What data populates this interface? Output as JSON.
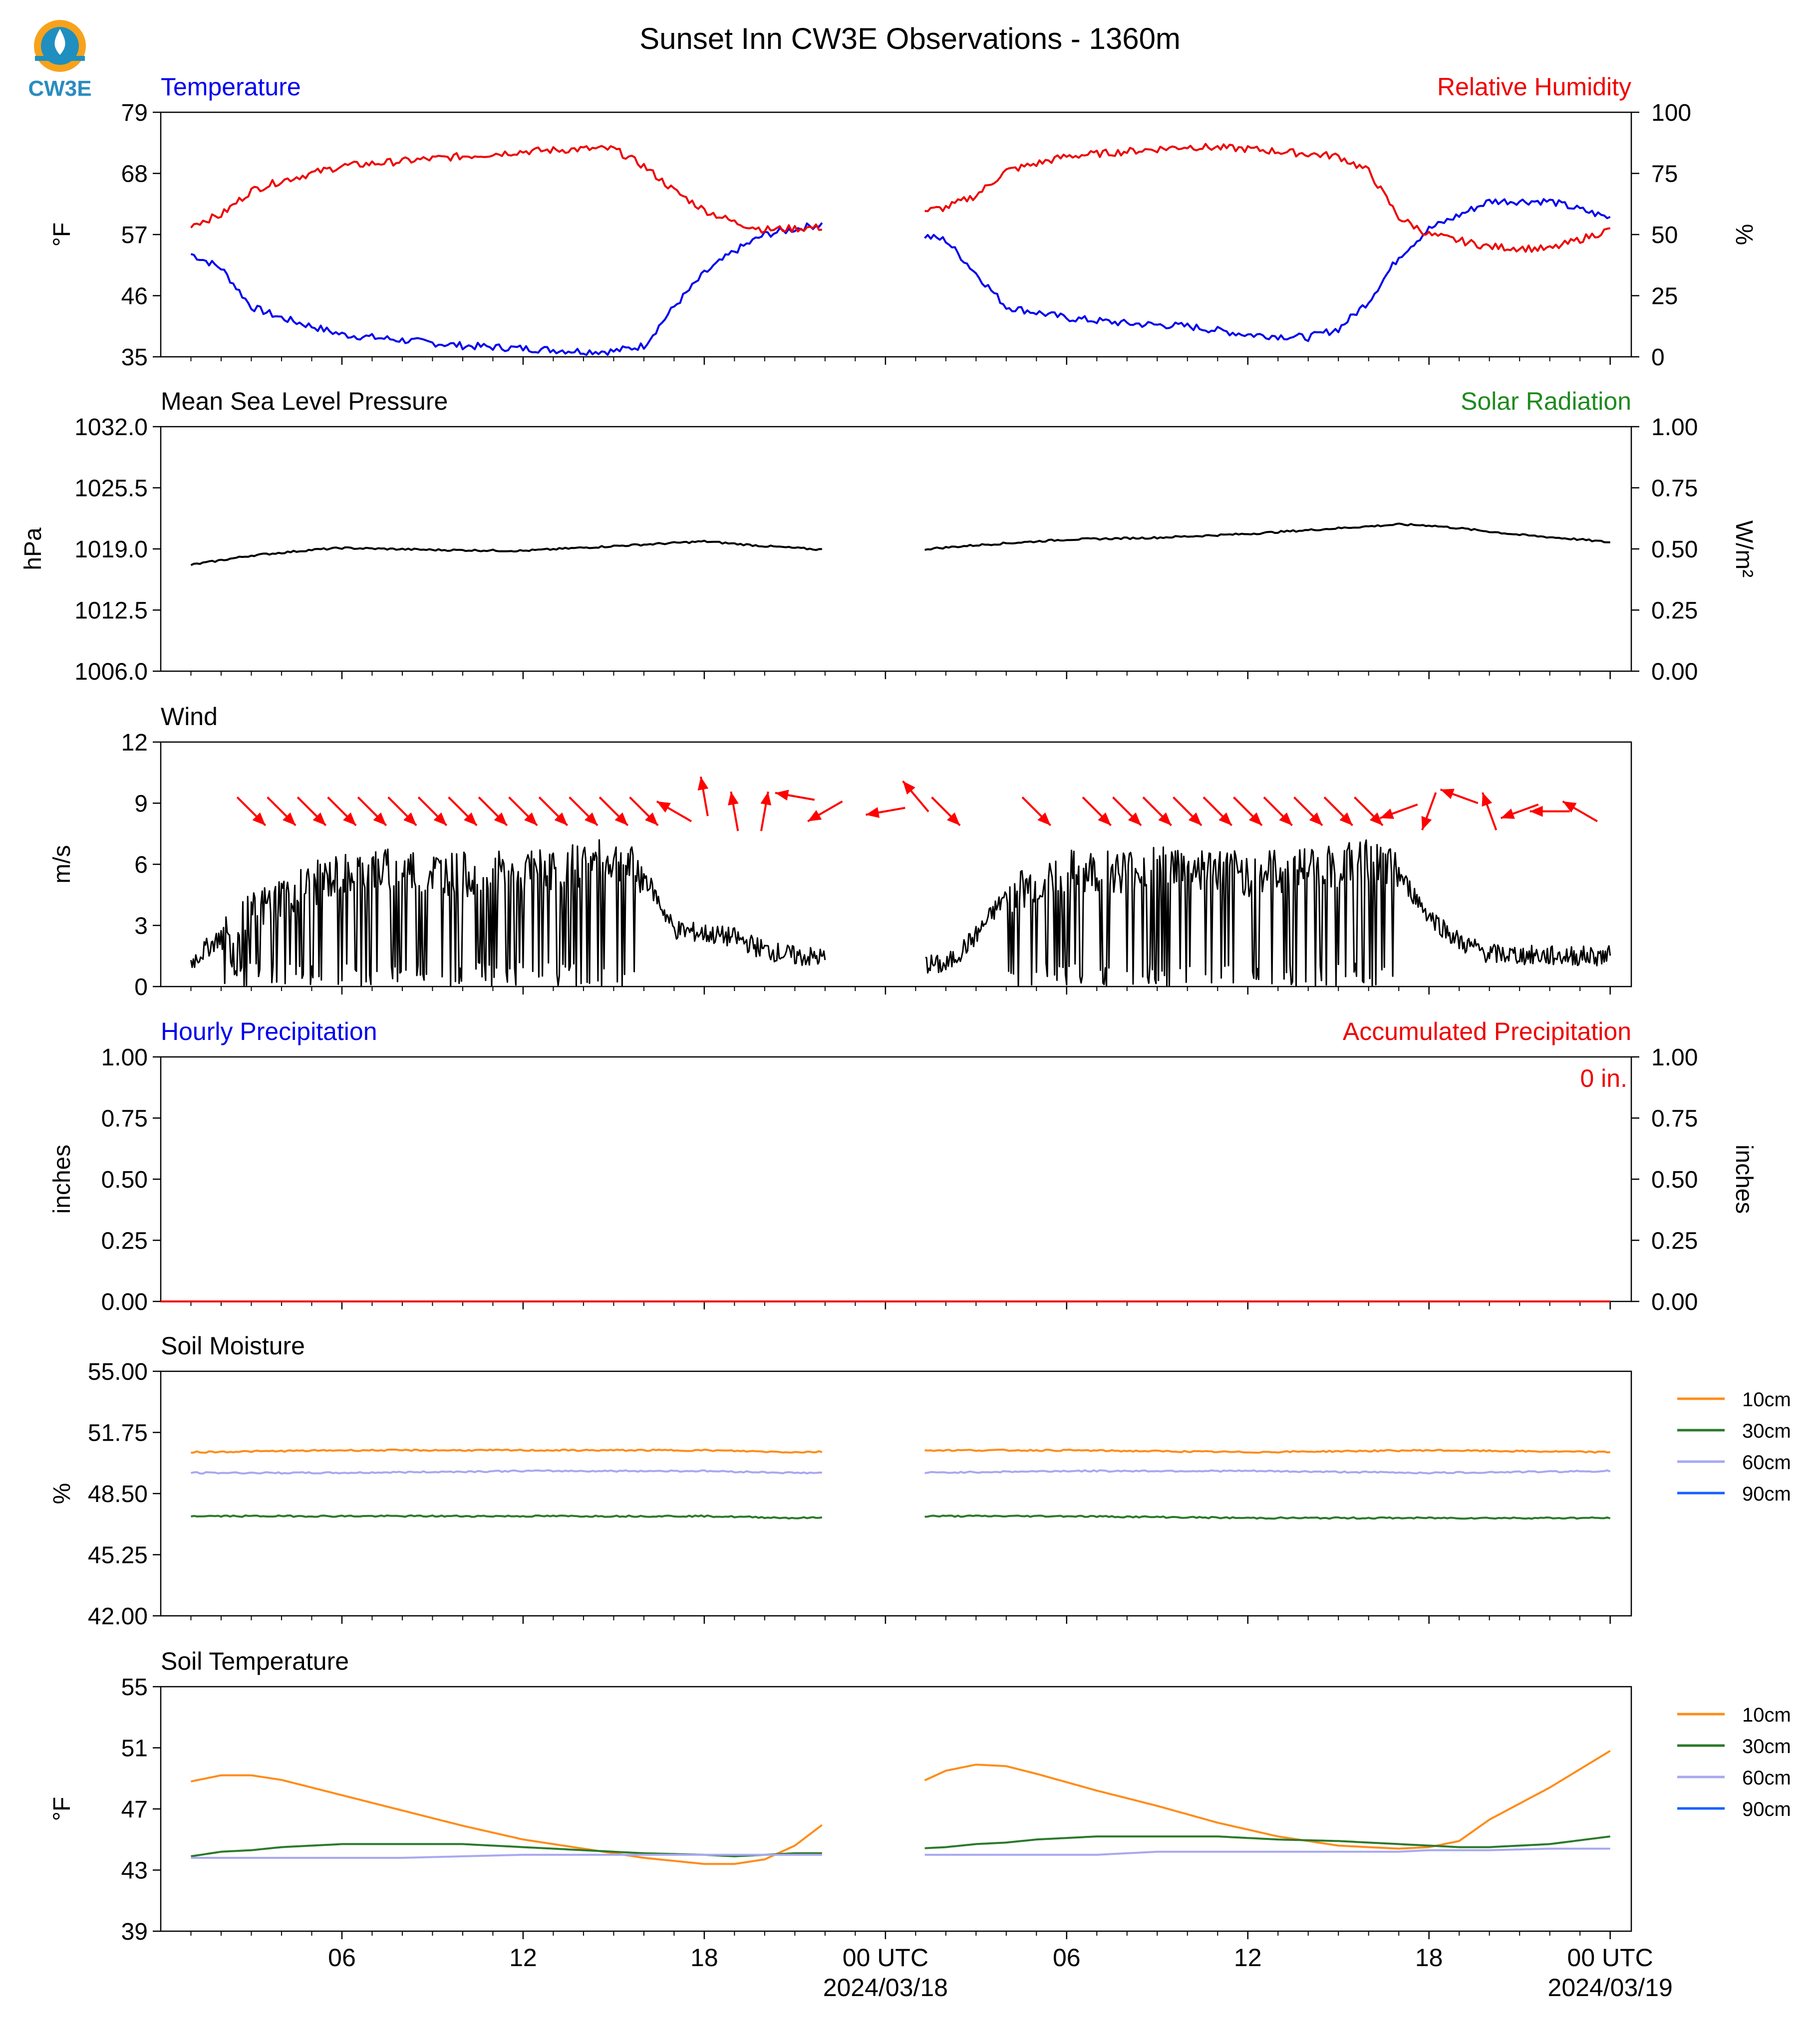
{
  "page": {
    "title": "Sunset Inn CW3E Observations - 1360m",
    "logo_text": "CW3E"
  },
  "x_axis": {
    "tick_labels": [
      "06",
      "12",
      "18",
      "00 UTC",
      "06",
      "12",
      "18",
      "00 UTC"
    ],
    "date_labels": [
      "2024/03/18",
      "2024/03/19"
    ]
  },
  "chart_data": [
    {
      "type": "line",
      "id": "temperature_rh",
      "left_title": "Temperature",
      "right_title": "Relative Humidity",
      "ylabel": "°F",
      "ylabel_right": "%",
      "yticks": [
        "79",
        "68",
        "57",
        "46",
        "35"
      ],
      "yticks_right": [
        "100",
        "75",
        "50",
        "25",
        "0"
      ],
      "ylim": [
        35,
        79
      ],
      "ylim_right": [
        0,
        100
      ],
      "x_hours": [
        1,
        2,
        3,
        4,
        6,
        8,
        10,
        12,
        14,
        15,
        16,
        17,
        18,
        19,
        20,
        22,
        25,
        26,
        27,
        28,
        30,
        32,
        34,
        36,
        38,
        39,
        40,
        41,
        42,
        44,
        46,
        48
      ],
      "series": [
        {
          "name": "Temperature",
          "color": "#0000ee",
          "values": [
            53.5,
            51,
            44,
            42,
            39,
            38,
            37,
            36.5,
            36,
            36,
            37,
            44,
            50,
            54,
            57,
            59,
            57,
            56,
            50,
            44,
            42,
            41,
            40.5,
            39,
            38.5,
            40,
            45,
            53,
            58,
            63,
            63,
            60
          ]
        },
        {
          "name": "Relative Humidity",
          "color": "#ee0000",
          "axis": "right",
          "values": [
            54,
            58,
            68,
            72,
            78,
            80,
            82,
            84,
            85,
            85,
            78,
            68,
            60,
            55,
            52,
            53,
            59,
            61,
            66,
            76,
            82,
            84,
            86,
            85,
            83,
            82,
            76,
            57,
            50,
            45,
            44,
            52
          ]
        }
      ]
    },
    {
      "type": "line",
      "id": "pressure",
      "left_title": "Mean Sea Level Pressure",
      "right_title": "Solar Radiation",
      "ylabel": "hPa",
      "ylabel_right": "W/m²",
      "yticks": [
        "1032.0",
        "1025.5",
        "1019.0",
        "1012.5",
        "1006.0"
      ],
      "yticks_right": [
        "1.00",
        "0.75",
        "0.50",
        "0.25",
        "0.00"
      ],
      "ylim": [
        1006,
        1032
      ],
      "x_hours": [
        1,
        3,
        5,
        6,
        9,
        12,
        15,
        18,
        20,
        22,
        25,
        27,
        30,
        33,
        36,
        39,
        41,
        42,
        43,
        45,
        47,
        48
      ],
      "series": [
        {
          "name": "Mean Sea Level Pressure",
          "color": "#000000",
          "values": [
            1017.3,
            1018.3,
            1018.9,
            1019.1,
            1018.9,
            1018.8,
            1019.3,
            1019.8,
            1019.3,
            1018.9,
            1018.9,
            1019.4,
            1020,
            1020.2,
            1020.6,
            1021.2,
            1021.6,
            1021.5,
            1021.2,
            1020.5,
            1020,
            1019.7
          ]
        }
      ]
    },
    {
      "type": "line",
      "id": "wind",
      "left_title": "Wind",
      "ylabel": "m/s",
      "yticks": [
        "12",
        "9",
        "6",
        "3",
        "0"
      ],
      "ylim": [
        0,
        12
      ],
      "x_hours": [
        1,
        2,
        4,
        6,
        8,
        10,
        12,
        14,
        15,
        16,
        17,
        18,
        19,
        20,
        21,
        22,
        25,
        26,
        27,
        28,
        30,
        32,
        34,
        36,
        38,
        40,
        41,
        42,
        43,
        44,
        46,
        48
      ],
      "series": [
        {
          "name": "Wind Speed",
          "color": "#000000",
          "values": [
            1.2,
            2.5,
            4.5,
            5.5,
            5.8,
            5.5,
            5.6,
            6,
            6.2,
            5.5,
            2.8,
            2.6,
            2.4,
            1.8,
            1.5,
            1.4,
            1.2,
            1.0,
            2.5,
            4.5,
            5.6,
            5.7,
            5.9,
            5.5,
            5.8,
            6.1,
            5.5,
            3.5,
            2.2,
            1.6,
            1.5,
            1.5
          ]
        }
      ],
      "direction_arrows": {
        "color": "#ff0000",
        "x_hours": [
          3,
          4,
          5,
          6,
          7,
          8,
          9,
          10,
          11,
          12,
          13,
          14,
          15,
          16,
          17,
          18,
          19,
          20,
          21,
          22,
          24,
          25,
          26,
          29,
          31,
          32,
          33,
          34,
          35,
          36,
          37,
          38,
          39,
          40,
          41,
          42,
          43,
          44,
          45,
          46,
          47
        ],
        "bearing_deg": [
          135,
          135,
          135,
          135,
          135,
          135,
          135,
          135,
          135,
          135,
          135,
          135,
          135,
          135,
          300,
          350,
          350,
          10,
          280,
          240,
          260,
          320,
          135,
          135,
          135,
          135,
          135,
          135,
          135,
          135,
          135,
          135,
          135,
          135,
          250,
          200,
          290,
          340,
          250,
          270,
          300
        ]
      }
    },
    {
      "type": "line",
      "id": "precipitation",
      "left_title": "Hourly Precipitation",
      "right_title": "Accumulated Precipitation",
      "annotation": "0 in.",
      "ylabel": "inches",
      "ylabel_right": "inches",
      "yticks": [
        "1.00",
        "0.75",
        "0.50",
        "0.25",
        "0.00"
      ],
      "yticks_right": [
        "1.00",
        "0.75",
        "0.50",
        "0.25",
        "0.00"
      ],
      "ylim": [
        0,
        1
      ],
      "x_hours": [
        0,
        48
      ],
      "series": [
        {
          "name": "Accumulated Precipitation",
          "color": "#ee0000",
          "values": [
            0,
            0
          ]
        }
      ]
    },
    {
      "type": "line",
      "id": "soil_moisture",
      "left_title": "Soil Moisture",
      "ylabel": "%",
      "yticks": [
        "55.00",
        "51.75",
        "48.50",
        "45.25",
        "42.00"
      ],
      "ylim": [
        42,
        55
      ],
      "x_hours": [
        1,
        6,
        12,
        18,
        21,
        25,
        30,
        36,
        42,
        48
      ],
      "series": [
        {
          "name": "10cm",
          "color": "#ff8c1a",
          "values": [
            50.7,
            50.8,
            50.8,
            50.8,
            50.7,
            50.8,
            50.8,
            50.7,
            50.8,
            50.7
          ]
        },
        {
          "name": "30cm",
          "color": "#2a7a2a",
          "values": [
            47.3,
            47.3,
            47.3,
            47.3,
            47.2,
            47.3,
            47.3,
            47.2,
            47.2,
            47.2
          ]
        },
        {
          "name": "60cm",
          "color": "#a8a8f0",
          "values": [
            49.6,
            49.6,
            49.7,
            49.7,
            49.6,
            49.6,
            49.7,
            49.7,
            49.6,
            49.7
          ]
        },
        {
          "name": "90cm",
          "color": "#1560ff",
          "values": []
        }
      ],
      "legend": [
        "10cm",
        "30cm",
        "60cm",
        "90cm"
      ]
    },
    {
      "type": "line",
      "id": "soil_temperature",
      "left_title": "Soil Temperature",
      "ylabel": "°F",
      "yticks": [
        "55",
        "51",
        "47",
        "43",
        "39"
      ],
      "ylim": [
        39,
        55
      ],
      "x_hours": [
        1,
        2,
        3,
        4,
        6,
        8,
        10,
        12,
        14,
        16,
        18,
        19,
        20,
        21,
        22,
        25,
        26,
        27,
        28,
        29,
        31,
        33,
        35,
        37,
        39,
        41,
        42,
        43,
        44,
        46,
        48
      ],
      "series": [
        {
          "name": "10cm",
          "color": "#ff8c1a",
          "values": [
            48.8,
            49.2,
            49.2,
            48.9,
            47.9,
            46.9,
            45.9,
            45.0,
            44.4,
            43.8,
            43.4,
            43.4,
            43.7,
            44.6,
            46.1,
            48.6,
            49.5,
            49.9,
            49.8,
            49.3,
            48.2,
            47.2,
            46.1,
            45.2,
            44.6,
            44.4,
            44.5,
            44.9,
            46.3,
            48.4,
            50.8
          ]
        },
        {
          "name": "30cm",
          "color": "#2a7a2a",
          "values": [
            43.9,
            44.2,
            44.3,
            44.5,
            44.7,
            44.7,
            44.7,
            44.5,
            44.3,
            44.1,
            44.0,
            43.9,
            44.0,
            44.1,
            44.1,
            44.4,
            44.5,
            44.7,
            44.8,
            45.0,
            45.2,
            45.2,
            45.2,
            45.0,
            44.9,
            44.7,
            44.6,
            44.5,
            44.5,
            44.7,
            45.2
          ]
        },
        {
          "name": "60cm",
          "color": "#a8a8f0",
          "values": [
            43.8,
            43.8,
            43.8,
            43.8,
            43.8,
            43.8,
            43.9,
            44.0,
            44.0,
            44.0,
            44.0,
            44.0,
            44.0,
            44.0,
            44.0,
            44.0,
            44.0,
            44.0,
            44.0,
            44.0,
            44.0,
            44.2,
            44.2,
            44.2,
            44.2,
            44.2,
            44.3,
            44.3,
            44.3,
            44.4,
            44.4
          ]
        },
        {
          "name": "90cm",
          "color": "#1560ff",
          "values": []
        }
      ],
      "legend": [
        "10cm",
        "30cm",
        "60cm",
        "90cm"
      ]
    }
  ]
}
